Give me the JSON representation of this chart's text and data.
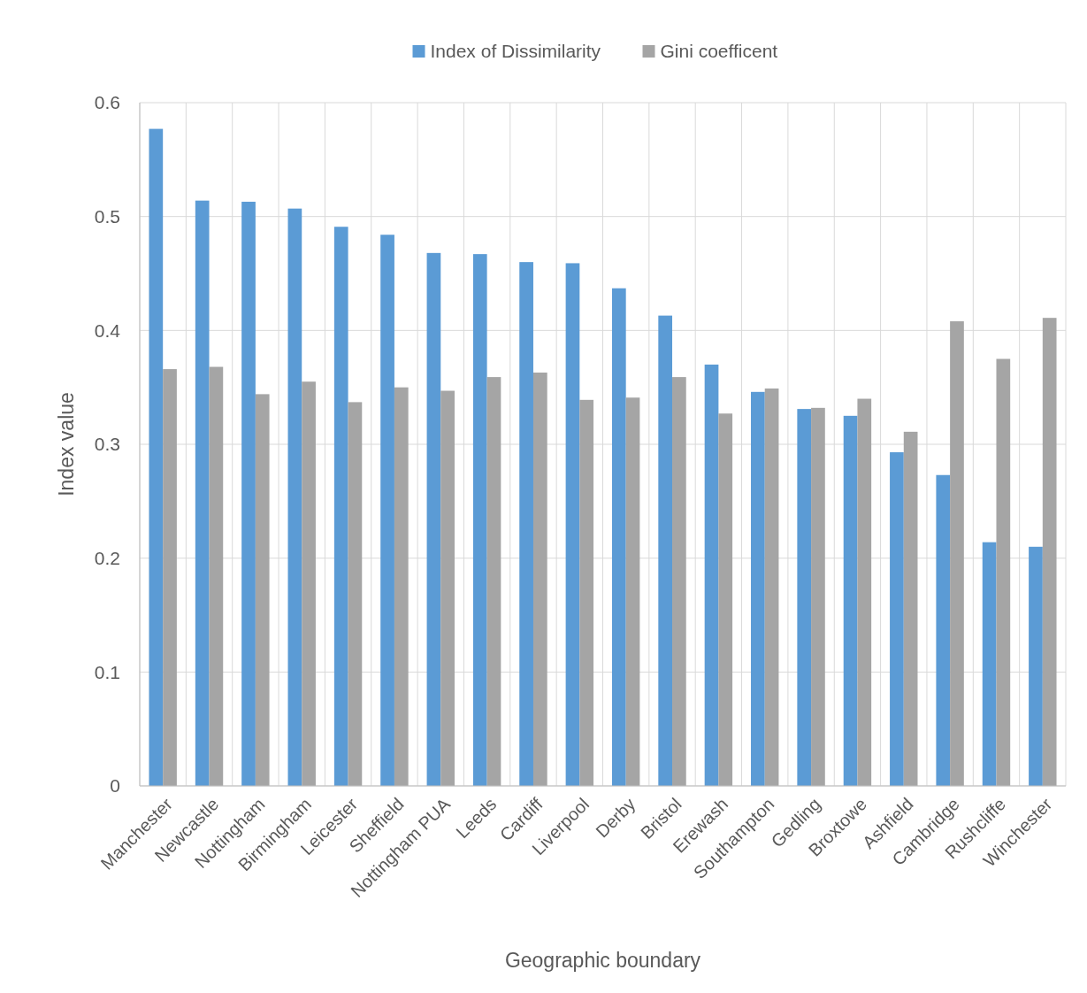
{
  "chart_data": {
    "type": "bar",
    "xlabel": "Geographic boundary",
    "ylabel": "Index value",
    "categories": [
      "Manchester",
      "Newcastle",
      "Nottingham",
      "Birmingham",
      "Leicester",
      "Sheffield",
      "Nottingham PUA",
      "Leeds",
      "Cardiff",
      "Liverpool",
      "Derby",
      "Bristol",
      "Erewash",
      "Southampton",
      "Gedling",
      "Broxtowe",
      "Ashfield",
      "Cambridge",
      "Rushcliffe",
      "Winchester"
    ],
    "series": [
      {
        "name": "Index of Dissimilarity",
        "color": "#5b9bd5",
        "values": [
          0.577,
          0.514,
          0.513,
          0.507,
          0.491,
          0.484,
          0.468,
          0.467,
          0.46,
          0.459,
          0.437,
          0.413,
          0.37,
          0.346,
          0.331,
          0.325,
          0.293,
          0.273,
          0.214,
          0.21
        ]
      },
      {
        "name": "Gini coefficent",
        "color": "#a5a5a5",
        "values": [
          0.366,
          0.368,
          0.344,
          0.355,
          0.337,
          0.35,
          0.347,
          0.359,
          0.363,
          0.339,
          0.341,
          0.359,
          0.327,
          0.349,
          0.332,
          0.34,
          0.311,
          0.408,
          0.375,
          0.411
        ]
      }
    ],
    "ylim": [
      0,
      0.6
    ],
    "yticks": [
      0,
      {
        "value": 0.1,
        "label": "0.1"
      },
      {
        "value": 0.2,
        "label": "0.2"
      },
      {
        "value": 0.3,
        "label": "0.3"
      },
      {
        "value": 0.4,
        "label": "0.4"
      },
      {
        "value": 0.5,
        "label": "0.5"
      },
      {
        "value": 0.6,
        "label": "0.6"
      }
    ],
    "grid": true,
    "legend": "top"
  }
}
